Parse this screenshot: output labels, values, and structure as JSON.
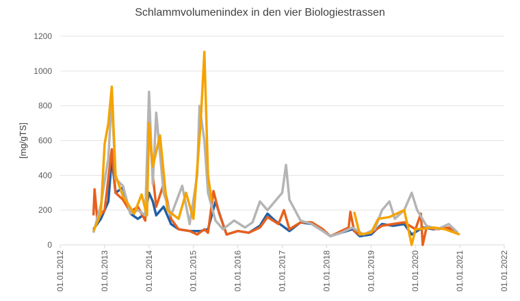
{
  "chart_data": {
    "type": "line",
    "title": "Schlammvolumenindex in den vier Biologiestrassen",
    "xlabel": "",
    "ylabel": "[mg/gTS]",
    "xlim": [
      "2012-01-01",
      "2022-01-01"
    ],
    "ylim": [
      0,
      1200
    ],
    "yticks": [
      "0",
      "200",
      "400",
      "600",
      "800",
      "1000",
      "1200"
    ],
    "xticks": [
      "01.01.2012",
      "01.01.2013",
      "01.01.2014",
      "01.01.2015",
      "01.01.2016",
      "01.01.2017",
      "01.01.2018",
      "01.01.2019",
      "01.01.2020",
      "01.01.2021",
      "01.01.2022"
    ],
    "grid": "horizontal",
    "legend": "none",
    "series": [
      {
        "color": "#1f5fa8",
        "points": [
          [
            "2012-10-01",
            90
          ],
          [
            "2012-12-01",
            150
          ],
          [
            "2013-02-01",
            250
          ],
          [
            "2013-03-01",
            500
          ],
          [
            "2013-04-01",
            300
          ],
          [
            "2013-06-01",
            330
          ],
          [
            "2013-08-01",
            180
          ],
          [
            "2013-10-01",
            150
          ],
          [
            "2013-12-01",
            180
          ],
          [
            "2014-01-01",
            300
          ],
          [
            "2014-02-01",
            250
          ],
          [
            "2014-03-01",
            170
          ],
          [
            "2014-05-01",
            220
          ],
          [
            "2014-07-01",
            120
          ],
          [
            "2014-09-01",
            90
          ],
          [
            "2014-12-01",
            80
          ],
          [
            "2015-03-01",
            80
          ],
          [
            "2015-05-01",
            90
          ],
          [
            "2015-07-01",
            250
          ],
          [
            "2015-09-01",
            120
          ],
          [
            "2015-10-01",
            60
          ],
          [
            "2016-01-01",
            80
          ],
          [
            "2016-04-01",
            70
          ],
          [
            "2016-07-01",
            110
          ],
          [
            "2016-09-01",
            180
          ],
          [
            "2016-11-01",
            140
          ],
          [
            "2017-01-01",
            110
          ],
          [
            "2017-03-01",
            80
          ],
          [
            "2017-06-01",
            130
          ],
          [
            "2017-09-01",
            120
          ],
          [
            "2017-12-01",
            80
          ],
          [
            "2018-02-01",
            50
          ],
          [
            "2018-05-01",
            70
          ],
          [
            "2018-08-01",
            90
          ],
          [
            "2018-10-01",
            50
          ],
          [
            "2019-01-01",
            60
          ],
          [
            "2019-04-01",
            120
          ],
          [
            "2019-07-01",
            110
          ],
          [
            "2019-10-01",
            120
          ],
          [
            "2019-12-01",
            60
          ],
          [
            "2020-03-01",
            100
          ],
          [
            "2020-06-01",
            90
          ],
          [
            "2020-09-01",
            100
          ],
          [
            "2020-12-15",
            70
          ]
        ]
      },
      {
        "color": "#e8601c",
        "points": [
          [
            "2012-10-01",
            170
          ],
          [
            "2012-10-10",
            320
          ],
          [
            "2012-11-01",
            150
          ],
          [
            "2013-01-01",
            200
          ],
          [
            "2013-03-01",
            550
          ],
          [
            "2013-04-01",
            300
          ],
          [
            "2013-06-01",
            260
          ],
          [
            "2013-08-01",
            190
          ],
          [
            "2013-10-01",
            220
          ],
          [
            "2013-12-01",
            140
          ],
          [
            "2014-01-01",
            720
          ],
          [
            "2014-02-01",
            400
          ],
          [
            "2014-03-01",
            220
          ],
          [
            "2014-05-01",
            350
          ],
          [
            "2014-07-01",
            150
          ],
          [
            "2014-09-01",
            90
          ],
          [
            "2014-12-01",
            80
          ],
          [
            "2015-02-01",
            60
          ],
          [
            "2015-04-01",
            90
          ],
          [
            "2015-05-01",
            70
          ],
          [
            "2015-06-15",
            310
          ],
          [
            "2015-08-01",
            180
          ],
          [
            "2015-10-01",
            60
          ],
          [
            "2016-01-01",
            80
          ],
          [
            "2016-04-01",
            70
          ],
          [
            "2016-07-01",
            100
          ],
          [
            "2016-09-01",
            160
          ],
          [
            "2016-12-01",
            120
          ],
          [
            "2017-01-15",
            200
          ],
          [
            "2017-03-01",
            90
          ],
          [
            "2017-06-01",
            130
          ],
          [
            "2017-09-01",
            130
          ],
          [
            "2017-12-01",
            90
          ],
          [
            "2018-02-01",
            50
          ],
          [
            "2018-05-01",
            80
          ],
          [
            "2018-07-01",
            100
          ],
          [
            "2018-07-15",
            190
          ],
          [
            "2018-08-15",
            80
          ],
          [
            "2018-10-01",
            60
          ],
          [
            "2019-01-01",
            70
          ],
          [
            "2019-04-01",
            110
          ],
          [
            "2019-07-01",
            120
          ],
          [
            "2019-10-01",
            130
          ],
          [
            "2020-01-01",
            90
          ],
          [
            "2020-02-15",
            180
          ],
          [
            "2020-03-01",
            0
          ],
          [
            "2020-04-01",
            100
          ],
          [
            "2020-07-01",
            90
          ],
          [
            "2020-10-01",
            100
          ],
          [
            "2020-12-15",
            70
          ]
        ]
      },
      {
        "color": "#b4b4b4",
        "points": [
          [
            "2012-10-01",
            70
          ],
          [
            "2012-12-01",
            230
          ],
          [
            "2013-02-01",
            500
          ],
          [
            "2013-03-01",
            850
          ],
          [
            "2013-04-01",
            380
          ],
          [
            "2013-06-01",
            340
          ],
          [
            "2013-08-01",
            180
          ],
          [
            "2013-10-01",
            200
          ],
          [
            "2013-12-01",
            170
          ],
          [
            "2014-01-01",
            880
          ],
          [
            "2014-02-01",
            350
          ],
          [
            "2014-03-01",
            760
          ],
          [
            "2014-05-01",
            300
          ],
          [
            "2014-07-01",
            170
          ],
          [
            "2014-10-01",
            340
          ],
          [
            "2014-12-01",
            120
          ],
          [
            "2015-02-01",
            400
          ],
          [
            "2015-02-20",
            800
          ],
          [
            "2015-04-01",
            600
          ],
          [
            "2015-05-01",
            300
          ],
          [
            "2015-07-01",
            140
          ],
          [
            "2015-09-01",
            90
          ],
          [
            "2015-12-01",
            140
          ],
          [
            "2016-03-01",
            100
          ],
          [
            "2016-05-01",
            130
          ],
          [
            "2016-07-01",
            250
          ],
          [
            "2016-09-01",
            200
          ],
          [
            "2016-11-01",
            250
          ],
          [
            "2017-01-01",
            300
          ],
          [
            "2017-02-01",
            460
          ],
          [
            "2017-03-01",
            260
          ],
          [
            "2017-06-01",
            140
          ],
          [
            "2017-09-01",
            120
          ],
          [
            "2017-12-01",
            80
          ],
          [
            "2018-02-01",
            50
          ],
          [
            "2018-05-01",
            70
          ],
          [
            "2018-08-01",
            100
          ],
          [
            "2018-11-01",
            60
          ],
          [
            "2019-02-01",
            90
          ],
          [
            "2019-04-01",
            200
          ],
          [
            "2019-06-01",
            250
          ],
          [
            "2019-07-15",
            150
          ],
          [
            "2019-10-01",
            200
          ],
          [
            "2019-12-01",
            300
          ],
          [
            "2020-01-15",
            200
          ],
          [
            "2020-04-01",
            110
          ],
          [
            "2020-07-01",
            90
          ],
          [
            "2020-10-01",
            120
          ],
          [
            "2020-12-15",
            70
          ]
        ]
      },
      {
        "color": "#f5a300",
        "points": [
          [
            "2012-10-01",
            80
          ],
          [
            "2012-12-01",
            180
          ],
          [
            "2013-01-01",
            580
          ],
          [
            "2013-02-01",
            700
          ],
          [
            "2013-03-01",
            910
          ],
          [
            "2013-04-01",
            400
          ],
          [
            "2013-06-01",
            280
          ],
          [
            "2013-09-01",
            180
          ],
          [
            "2013-11-01",
            290
          ],
          [
            "2013-12-15",
            170
          ],
          [
            "2014-01-01",
            700
          ],
          [
            "2014-02-01",
            450
          ],
          [
            "2014-04-01",
            630
          ],
          [
            "2014-06-01",
            200
          ],
          [
            "2014-09-01",
            150
          ],
          [
            "2014-11-01",
            300
          ],
          [
            "2015-01-01",
            150
          ],
          [
            "2015-03-01",
            700
          ],
          [
            "2015-04-01",
            1110
          ],
          [
            "2015-05-01",
            400
          ],
          [
            "2015-06-01",
            250
          ],
          null,
          [
            "2018-08-15",
            190
          ],
          [
            "2018-10-01",
            60
          ],
          [
            "2019-01-01",
            70
          ],
          [
            "2019-03-01",
            150
          ],
          [
            "2019-06-01",
            160
          ],
          [
            "2019-10-01",
            200
          ],
          [
            "2019-12-01",
            0
          ],
          [
            "2020-01-01",
            90
          ],
          [
            "2020-06-01",
            100
          ],
          [
            "2020-09-01",
            90
          ],
          [
            "2020-12-31",
            60
          ]
        ]
      }
    ]
  }
}
